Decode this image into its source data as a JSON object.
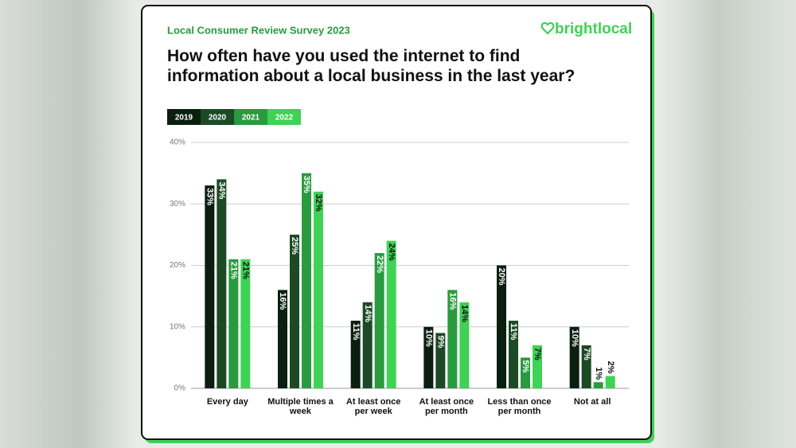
{
  "brand": "brightlocal",
  "chart_data": {
    "type": "bar",
    "subtitle": "Local Consumer Review Survey 2023",
    "title": "How often have you used the internet to find information about a local business in the last year?",
    "categories": [
      "Every day",
      "Multiple times a week",
      "At least once per week",
      "At least once per month",
      "Less than once per month",
      "Not at all"
    ],
    "series": [
      {
        "name": "2019",
        "color": "#0b1f10",
        "values": [
          33,
          16,
          11,
          10,
          20,
          10
        ],
        "value_labels": [
          "33%",
          "16%",
          "11%",
          "10%",
          "20%",
          "10%"
        ]
      },
      {
        "name": "2020",
        "color": "#1b4a25",
        "values": [
          34,
          25,
          14,
          9,
          11,
          7
        ],
        "value_labels": [
          "34%",
          "25%",
          "14%",
          "9%",
          "11%",
          "7%"
        ]
      },
      {
        "name": "2021",
        "color": "#2a9a3f",
        "values": [
          21,
          35,
          22,
          16,
          5,
          1
        ],
        "value_labels": [
          "21%",
          "35%",
          "22%",
          "16%",
          "5%",
          "1%"
        ]
      },
      {
        "name": "2022",
        "color": "#3fd255",
        "values": [
          21,
          32,
          24,
          14,
          7,
          2
        ],
        "value_labels": [
          "21%",
          "32%",
          "24%",
          "14%",
          "7%",
          "2%"
        ]
      }
    ],
    "ylim": [
      0,
      40
    ],
    "yticks": [
      {
        "value": 0,
        "label": "0%"
      },
      {
        "value": 10,
        "label": "10%"
      },
      {
        "value": 20,
        "label": "20%"
      },
      {
        "value": 30,
        "label": "30%"
      },
      {
        "value": 40,
        "label": "40%"
      }
    ],
    "grid": true
  }
}
